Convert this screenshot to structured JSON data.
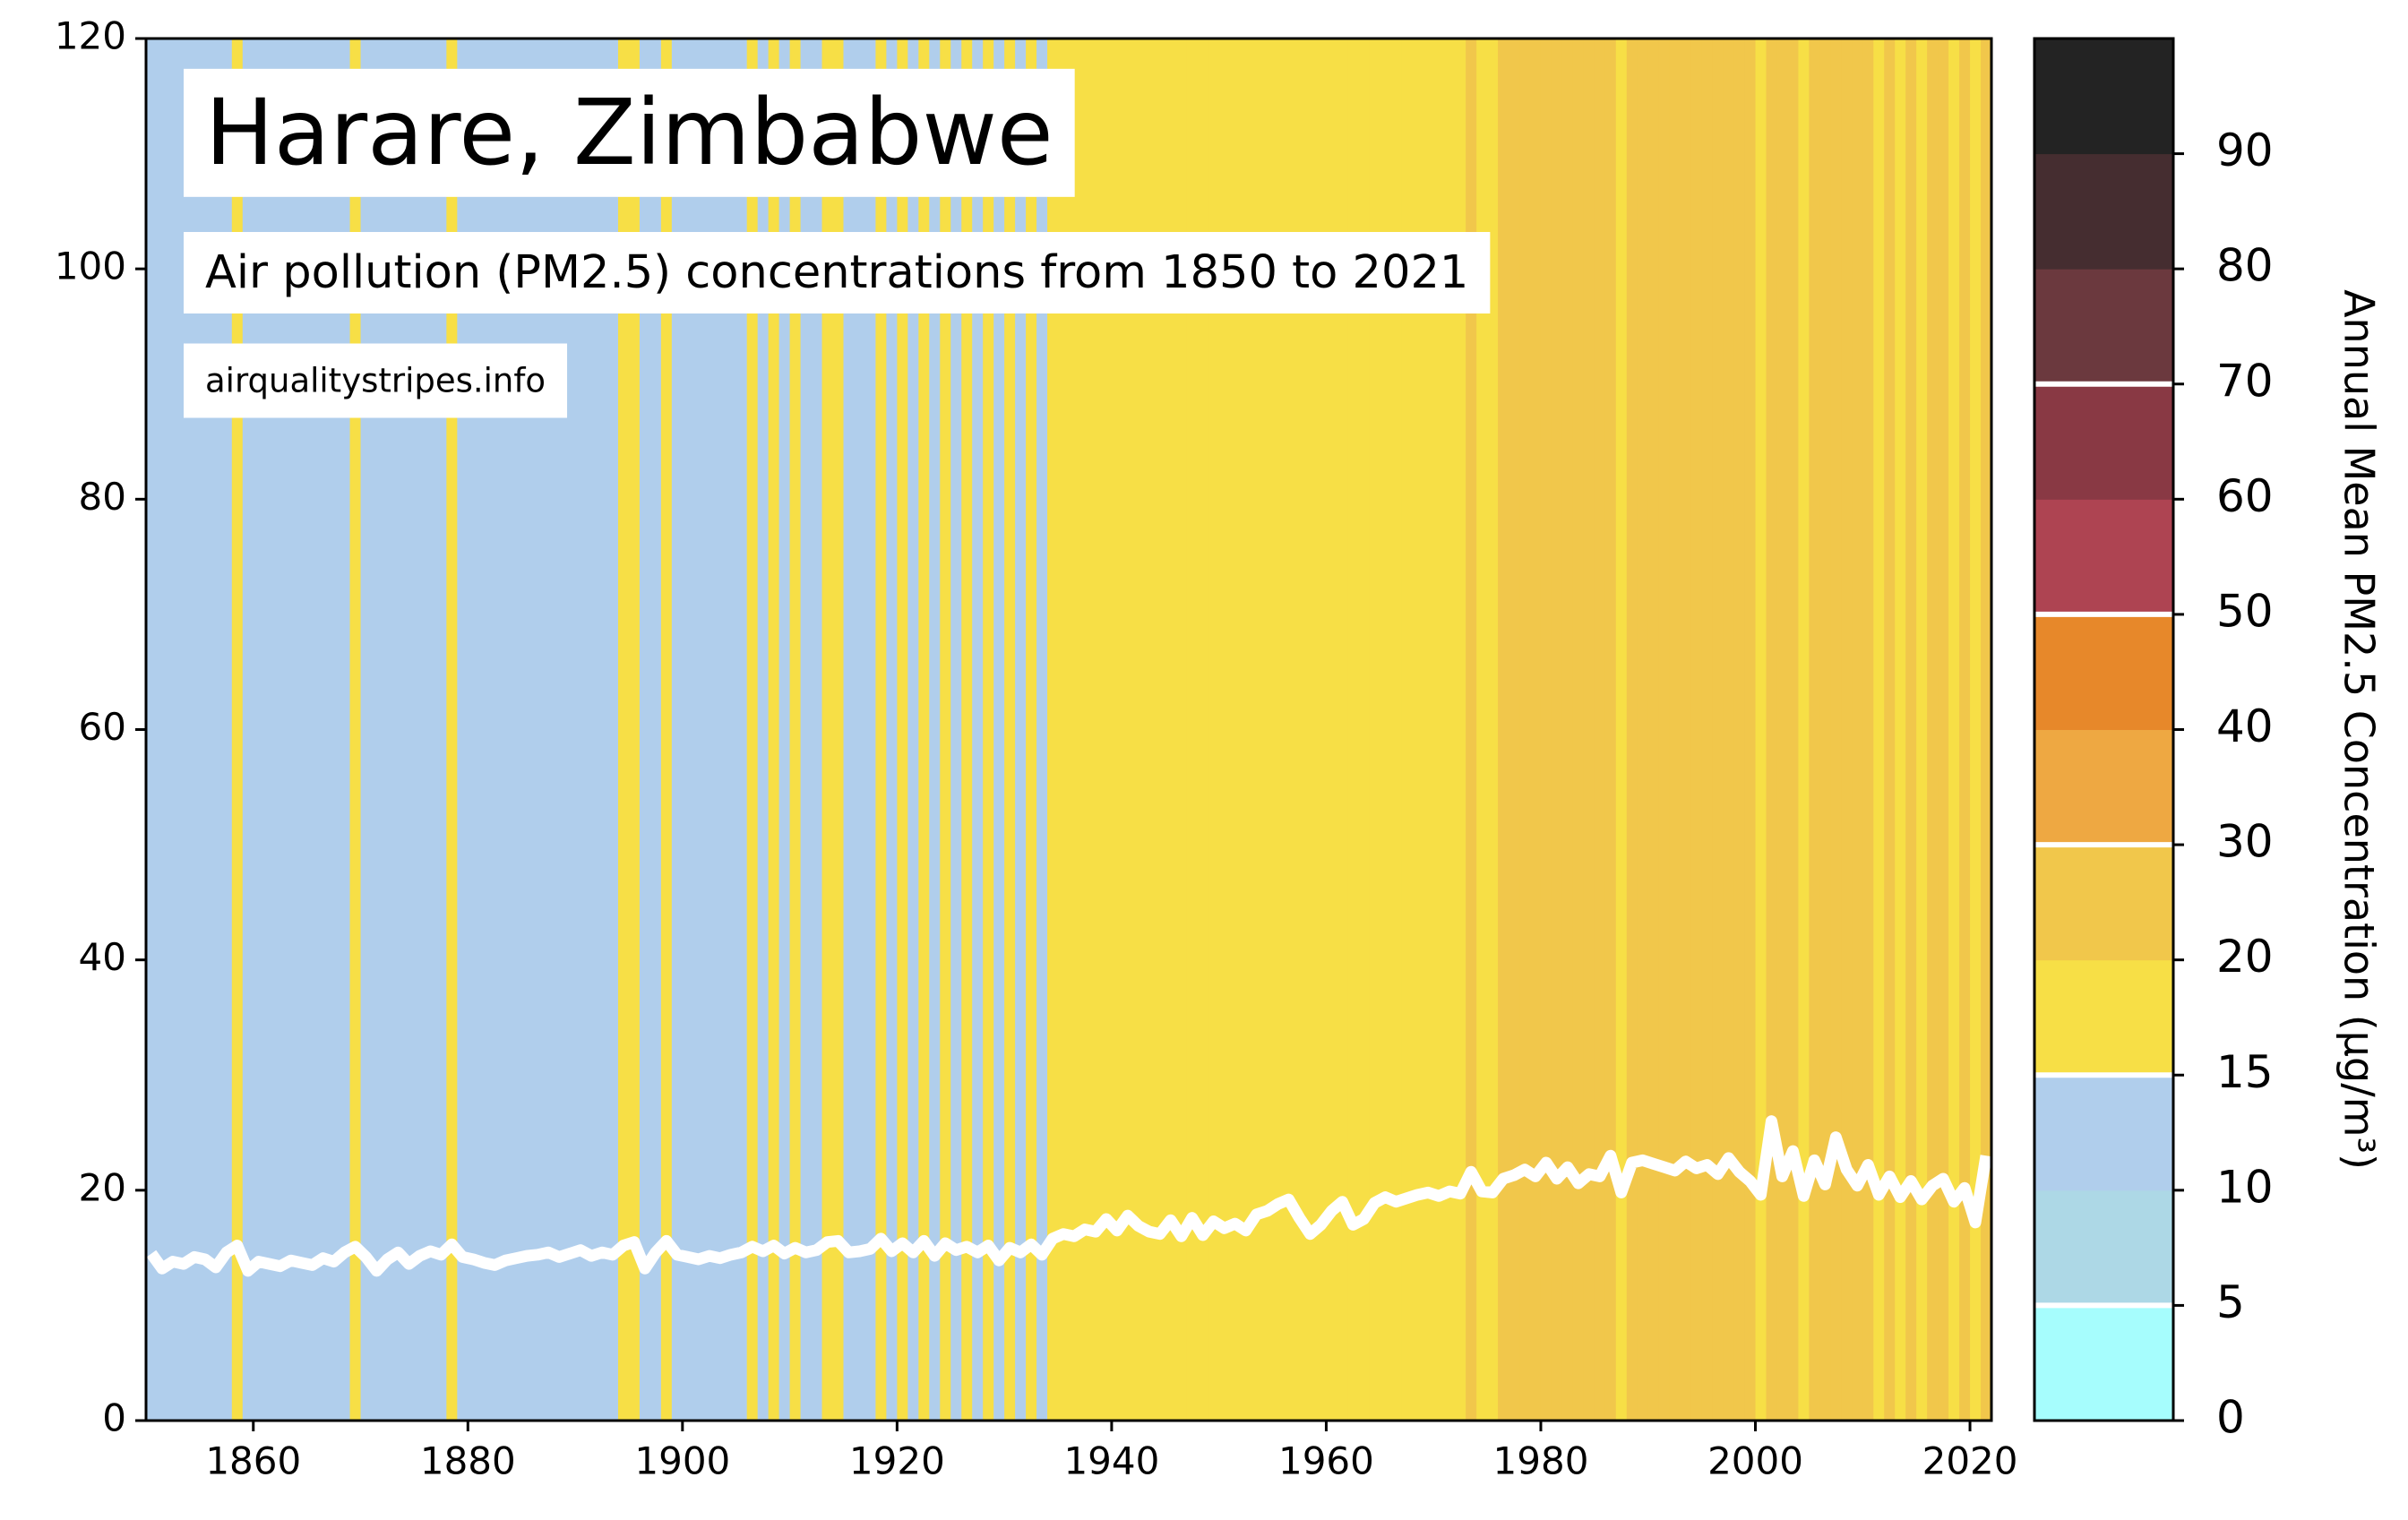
{
  "chart_data": {
    "type": "stripes",
    "title": "Harare, Zimbabwe",
    "subtitle": "Air pollution (PM2.5) concentrations from 1850 to 2021",
    "source": "airqualitystripes.info",
    "x_start": 1850,
    "values": [
      14.5,
      13.2,
      13.8,
      13.6,
      14.2,
      14.0,
      13.3,
      14.6,
      15.2,
      13.0,
      13.8,
      13.6,
      13.4,
      13.9,
      13.7,
      13.5,
      14.1,
      13.8,
      14.6,
      15.1,
      14.2,
      13.0,
      14.0,
      14.6,
      13.6,
      14.3,
      14.7,
      14.4,
      15.3,
      14.2,
      14.0,
      13.7,
      13.5,
      13.9,
      14.1,
      14.3,
      14.4,
      14.6,
      14.2,
      14.5,
      14.8,
      14.3,
      14.6,
      14.4,
      15.2,
      15.5,
      13.2,
      14.6,
      15.6,
      14.4,
      14.2,
      14.0,
      14.3,
      14.1,
      14.4,
      14.6,
      15.1,
      14.7,
      15.2,
      14.5,
      15.0,
      14.6,
      14.8,
      15.5,
      15.6,
      14.6,
      14.7,
      14.9,
      15.8,
      14.7,
      15.4,
      14.6,
      15.6,
      14.3,
      15.4,
      14.8,
      15.1,
      14.6,
      15.2,
      13.9,
      15.0,
      14.6,
      15.3,
      14.4,
      15.8,
      16.2,
      16.0,
      16.6,
      16.4,
      17.5,
      16.5,
      17.8,
      16.9,
      16.4,
      16.2,
      17.4,
      16.0,
      17.6,
      16.1,
      17.3,
      16.7,
      17.1,
      16.5,
      17.9,
      18.2,
      18.8,
      19.2,
      17.6,
      16.2,
      17.0,
      18.2,
      19.0,
      17.0,
      17.5,
      18.9,
      19.4,
      19.0,
      19.3,
      19.6,
      19.8,
      19.5,
      19.9,
      19.7,
      21.6,
      19.9,
      19.8,
      21.0,
      21.3,
      21.8,
      21.2,
      22.4,
      21.0,
      22.0,
      20.6,
      21.4,
      21.2,
      23.0,
      19.8,
      22.4,
      22.6,
      22.3,
      22.0,
      21.7,
      22.5,
      21.9,
      22.2,
      21.4,
      22.8,
      21.6,
      20.8,
      19.6,
      26.0,
      21.2,
      23.4,
      19.5,
      22.6,
      20.5,
      24.6,
      21.8,
      20.4,
      22.2,
      19.6,
      21.2,
      19.4,
      20.8,
      19.2,
      20.4,
      21.0,
      19.0,
      20.2,
      17.2,
      23.0
    ],
    "line_color": "#ffffff",
    "xlim": [
      1850,
      2022
    ],
    "xticks": [
      1860,
      1880,
      1900,
      1920,
      1940,
      1960,
      1980,
      2000,
      2020
    ],
    "ylim": [
      0,
      120
    ],
    "yticks": [
      0,
      20,
      40,
      60,
      80,
      100,
      120
    ],
    "colorbar": {
      "label": "Annual Mean PM2.5 Concentration (µg/m³)",
      "boundaries": [
        0,
        5,
        10,
        15,
        20,
        30,
        40,
        50,
        60,
        70,
        80,
        90,
        100
      ],
      "colors": [
        "#a6fdfd",
        "#add8e6",
        "#b0ceec",
        "#f7df46",
        "#f1c74b",
        "#eea842",
        "#e7882a",
        "#ae4452",
        "#893944",
        "#6b393e",
        "#452d30",
        "#232323"
      ],
      "ticks": [
        0,
        5,
        10,
        15,
        20,
        30,
        40,
        50,
        60,
        70,
        80,
        90
      ],
      "guidelines": [
        5,
        15,
        30,
        50,
        70
      ]
    }
  }
}
